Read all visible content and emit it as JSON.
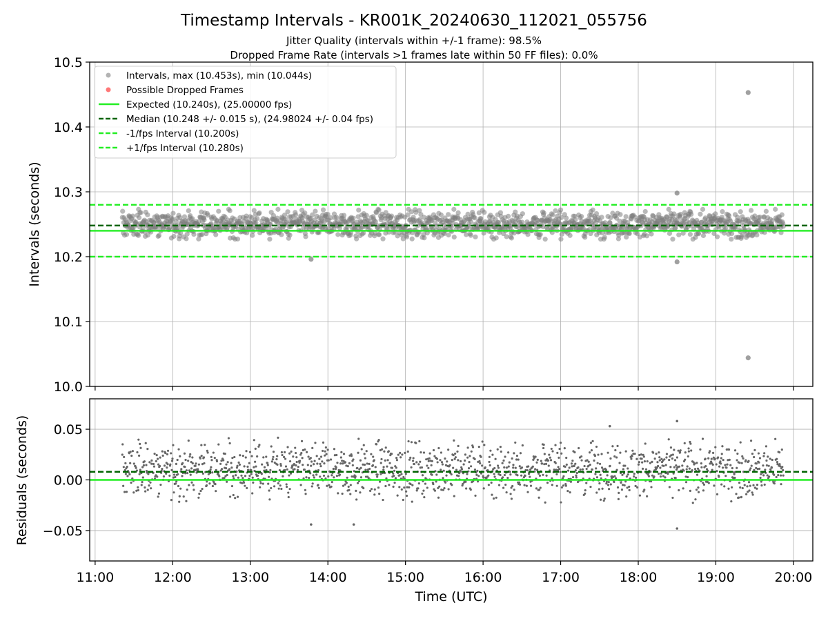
{
  "chart_data": [
    {
      "type": "scatter",
      "title": "Timestamp Intervals - KR001K_20240630_112021_055756",
      "subtitle_lines": [
        "Jitter Quality (intervals within +/-1 frame): 98.5%",
        "Dropped Frame Rate (intervals >1 frames late within 50 FF files): 0.0%"
      ],
      "ylabel": "Intervals (seconds)",
      "ylim": [
        10.0,
        10.5
      ],
      "yticks": [
        "10.0",
        "10.1",
        "10.2",
        "10.3",
        "10.4",
        "10.5"
      ],
      "yticks_values": [
        10.0,
        10.1,
        10.2,
        10.3,
        10.4,
        10.5
      ],
      "x_range_hours": [
        10.93,
        20.25
      ],
      "x_data_span_hours": [
        11.35,
        19.87
      ],
      "grid": true,
      "legend_position": "upper-left",
      "series": [
        {
          "name": "Intervals, max (10.453s), min (10.044s)",
          "kind": "points",
          "color": "#808080",
          "typical_center": 10.25,
          "typical_spread": 0.02,
          "highlights": [
            {
              "x_time": "19:25",
              "y": 10.453
            },
            {
              "x_time": "19:25",
              "y": 10.044
            },
            {
              "x_time": "18:30",
              "y": 10.298
            },
            {
              "x_time": "18:30",
              "y": 10.192
            },
            {
              "x_time": "13:47",
              "y": 10.196
            }
          ]
        },
        {
          "name": "Possible Dropped Frames",
          "kind": "points",
          "color": "#ff5555",
          "values": []
        },
        {
          "name": "Expected (10.240s), (25.00000 fps)",
          "kind": "hline",
          "y": 10.24,
          "color": "#22ee22",
          "style": "solid"
        },
        {
          "name": "Median (10.248 +/- 0.015 s), (24.98024 +/- 0.04 fps)",
          "kind": "hline",
          "y": 10.248,
          "color": "#006400",
          "style": "dashed"
        },
        {
          "name": "-1/fps Interval (10.200s)",
          "kind": "hline",
          "y": 10.2,
          "color": "#22ee22",
          "style": "dashed"
        },
        {
          "name": "+1/fps Interval (10.280s)",
          "kind": "hline",
          "y": 10.28,
          "color": "#22ee22",
          "style": "dashed"
        }
      ]
    },
    {
      "type": "scatter",
      "xlabel": "Time (UTC)",
      "ylabel": "Residuals (seconds)",
      "ylim": [
        -0.08,
        0.08
      ],
      "yticks": [
        "0.05",
        "0.00",
        "−0.05"
      ],
      "yticks_values": [
        0.05,
        0.0,
        -0.05
      ],
      "xticks": [
        "11:00",
        "12:00",
        "13:00",
        "14:00",
        "15:00",
        "16:00",
        "17:00",
        "18:00",
        "19:00",
        "20:00"
      ],
      "xticks_hours": [
        11,
        12,
        13,
        14,
        15,
        16,
        17,
        18,
        19,
        20
      ],
      "grid": true,
      "series": [
        {
          "name": "residuals",
          "kind": "points",
          "color": "#666666",
          "typical_center": 0.01,
          "typical_spread": 0.02,
          "highlights": [
            {
              "x_time": "18:30",
              "y": 0.058
            },
            {
              "x_time": "18:30",
              "y": -0.048
            },
            {
              "x_time": "17:38",
              "y": 0.053
            },
            {
              "x_time": "14:20",
              "y": -0.044
            },
            {
              "x_time": "13:47",
              "y": -0.044
            }
          ]
        },
        {
          "name": "zero",
          "kind": "hline",
          "y": 0.0,
          "color": "#22ee22",
          "style": "solid"
        },
        {
          "name": "median offset",
          "kind": "hline",
          "y": 0.008,
          "color": "#006400",
          "style": "dashed"
        }
      ]
    }
  ]
}
